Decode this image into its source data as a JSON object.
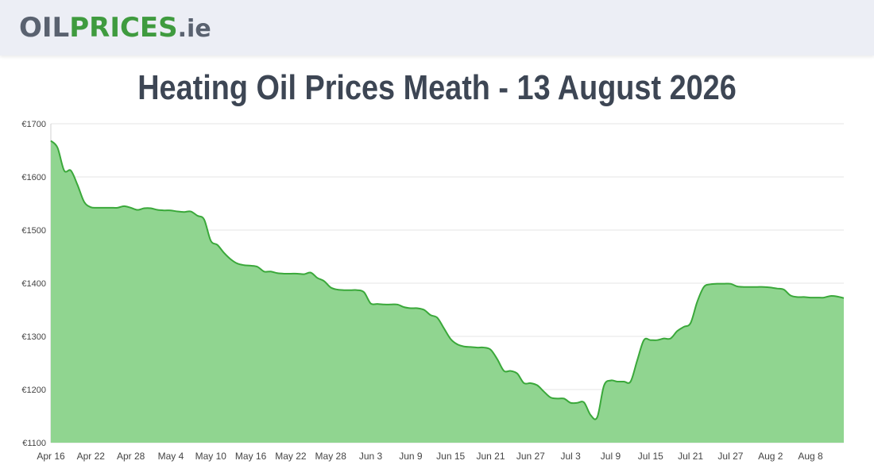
{
  "header": {
    "logo": {
      "part1": "OIL",
      "part2": "PRICES",
      "part3": ".ie"
    }
  },
  "page_title": "Heating Oil Prices Meath - 13 August 2026",
  "colors": {
    "header_bg": "#eceef5",
    "logo_grey": "#5a6270",
    "logo_green": "#3f9b3f",
    "line": "#3aa83a",
    "fill": "#90d590",
    "grid": "#e6e6e6",
    "title": "#3d4654"
  },
  "chart_data": {
    "type": "area",
    "title": "Heating Oil Prices Meath - 13 August 2026",
    "xlabel": "",
    "ylabel": "",
    "ylim": [
      1100,
      1700
    ],
    "yticks": [
      1100,
      1200,
      1300,
      1400,
      1500,
      1600,
      1700
    ],
    "ytick_labels": [
      "€1100",
      "€1200",
      "€1300",
      "€1400",
      "€1500",
      "€1600",
      "€1700"
    ],
    "xticks": [
      "Apr 16",
      "Apr 22",
      "Apr 28",
      "May 4",
      "May 10",
      "May 16",
      "May 22",
      "May 28",
      "Jun 3",
      "Jun 9",
      "Jun 15",
      "Jun 21",
      "Jun 27",
      "Jul 3",
      "Jul 9",
      "Jul 15",
      "Jul 21",
      "Jul 27",
      "Aug 2",
      "Aug 8"
    ],
    "grid": true,
    "legend": "none",
    "series": [
      {
        "x": [
          "Apr 16",
          "Apr 17",
          "Apr 18",
          "Apr 19",
          "Apr 20",
          "Apr 21",
          "Apr 22",
          "Apr 23",
          "Apr 24",
          "Apr 25",
          "Apr 26",
          "Apr 27",
          "Apr 28",
          "Apr 29",
          "Apr 30",
          "May 1",
          "May 2",
          "May 3",
          "May 4",
          "May 5",
          "May 6",
          "May 7",
          "May 8",
          "May 9",
          "May 10",
          "May 11",
          "May 12",
          "May 13",
          "May 14",
          "May 15",
          "May 16",
          "May 17",
          "May 18",
          "May 19",
          "May 20",
          "May 21",
          "May 22",
          "May 23",
          "May 24",
          "May 25",
          "May 26",
          "May 27",
          "May 28",
          "May 29",
          "May 30",
          "May 31",
          "Jun 1",
          "Jun 2",
          "Jun 3",
          "Jun 4",
          "Jun 5",
          "Jun 6",
          "Jun 7",
          "Jun 8",
          "Jun 9",
          "Jun 10",
          "Jun 11",
          "Jun 12",
          "Jun 13",
          "Jun 14",
          "Jun 15",
          "Jun 16",
          "Jun 17",
          "Jun 18",
          "Jun 19",
          "Jun 20",
          "Jun 21",
          "Jun 22",
          "Jun 23",
          "Jun 24",
          "Jun 25",
          "Jun 26",
          "Jun 27",
          "Jun 28",
          "Jun 29",
          "Jun 30",
          "Jul 1",
          "Jul 2",
          "Jul 3",
          "Jul 4",
          "Jul 5",
          "Jul 6",
          "Jul 7",
          "Jul 8",
          "Jul 9",
          "Jul 10",
          "Jul 11",
          "Jul 12",
          "Jul 13",
          "Jul 14",
          "Jul 15",
          "Jul 16",
          "Jul 17",
          "Jul 18",
          "Jul 19",
          "Jul 20",
          "Jul 21",
          "Jul 22",
          "Jul 23",
          "Jul 24",
          "Jul 25",
          "Jul 26",
          "Jul 27",
          "Jul 28",
          "Jul 29",
          "Jul 30",
          "Jul 31",
          "Aug 1",
          "Aug 2",
          "Aug 3",
          "Aug 4",
          "Aug 5",
          "Aug 6",
          "Aug 7",
          "Aug 8",
          "Aug 9",
          "Aug 10",
          "Aug 11",
          "Aug 12",
          "Aug 13"
        ],
        "values": [
          1668,
          1655,
          1612,
          1612,
          1585,
          1553,
          1543,
          1542,
          1542,
          1542,
          1542,
          1545,
          1542,
          1538,
          1541,
          1541,
          1538,
          1537,
          1537,
          1535,
          1534,
          1535,
          1527,
          1520,
          1480,
          1472,
          1457,
          1445,
          1437,
          1434,
          1433,
          1431,
          1422,
          1422,
          1419,
          1418,
          1418,
          1418,
          1417,
          1420,
          1410,
          1404,
          1392,
          1388,
          1387,
          1387,
          1387,
          1383,
          1362,
          1361,
          1360,
          1360,
          1360,
          1355,
          1353,
          1353,
          1350,
          1340,
          1335,
          1315,
          1295,
          1285,
          1281,
          1280,
          1279,
          1279,
          1275,
          1257,
          1235,
          1235,
          1230,
          1212,
          1212,
          1208,
          1196,
          1185,
          1183,
          1183,
          1175,
          1175,
          1176,
          1152,
          1148,
          1207,
          1217,
          1215,
          1215,
          1215,
          1255,
          1293,
          1293,
          1293,
          1296,
          1296,
          1310,
          1318,
          1325,
          1365,
          1393,
          1398,
          1399,
          1399,
          1399,
          1394,
          1393,
          1393,
          1393,
          1393,
          1392,
          1390,
          1388,
          1377,
          1374,
          1374,
          1373,
          1373,
          1373,
          1376,
          1375,
          1372
        ]
      }
    ]
  }
}
